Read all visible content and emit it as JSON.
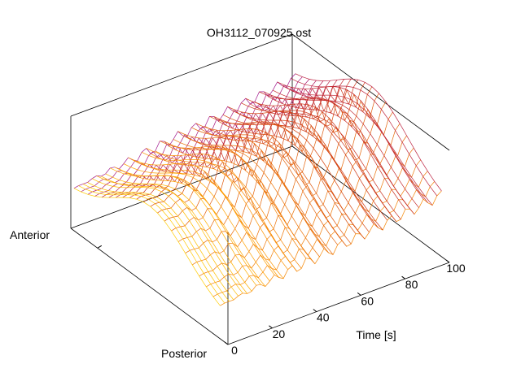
{
  "chart_data": {
    "type": "surface",
    "title": "OH3112_070925.ost",
    "xlabel": "Time [s]",
    "ylabel_front": "Posterior",
    "ylabel_back": "Anterior",
    "zlabel": "",
    "xlim": [
      0,
      100
    ],
    "ylim": [
      0,
      1
    ],
    "zlim": [
      0,
      1
    ],
    "x_ticks": [
      0,
      20,
      40,
      60,
      80,
      100
    ],
    "x_tick_labels": [
      "0",
      "20",
      "40",
      "60",
      "80",
      "100"
    ],
    "y_ticks": [],
    "z_ticks": [],
    "grid": false,
    "legend": "none",
    "colormap": [
      "#ffee00",
      "#ff9a00",
      "#d03a10",
      "#b01560",
      "#8a20d8"
    ],
    "surface": {
      "x_samples": 50,
      "y_samples": 22,
      "ridge_y": 0.5,
      "ridge_rises_with_x": 0.25,
      "oscillation_period_s": 7.5,
      "oscillation_amplitude": 0.1
    }
  }
}
